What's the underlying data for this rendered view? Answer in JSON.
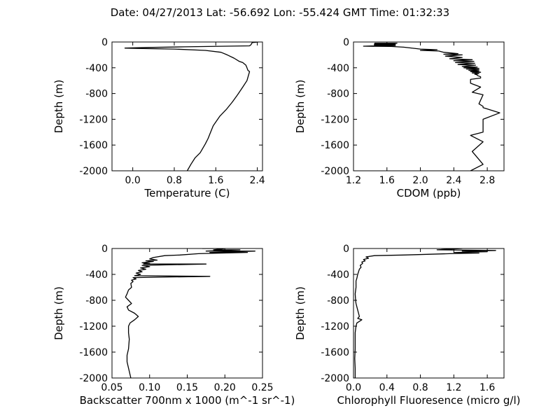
{
  "figure": {
    "title": "Date: 04/27/2013  Lat:  -56.692 Lon:  -55.424  GMT Time: 01:32:33",
    "line_color": "#000000",
    "background": "#ffffff"
  },
  "chart_data": [
    {
      "type": "line",
      "orientation": "vertical-profile",
      "xlabel": "Temperature (C)",
      "ylabel": "Depth (m)",
      "xlim": [
        -0.4,
        2.5
      ],
      "ylim": [
        -2000,
        0
      ],
      "xticks": [
        "0.0",
        "0.8",
        "1.6",
        "2.4"
      ],
      "xtick_values": [
        0.0,
        0.8,
        1.6,
        2.4
      ],
      "yticks": [
        "0",
        "-400",
        "-800",
        "-1200",
        "-1600",
        "-2000"
      ],
      "ytick_values": [
        0,
        -400,
        -800,
        -1200,
        -1600,
        -2000
      ],
      "grid": false,
      "series": [
        {
          "x": [
            2.42,
            2.3,
            2.28,
            2.25,
            1.0,
            0.3,
            -0.15,
            0.1,
            0.8,
            1.4,
            1.7,
            1.82,
            1.95,
            2.05,
            2.12,
            2.18,
            2.2,
            2.22,
            2.25,
            2.2,
            2.12,
            2.02,
            1.92,
            1.8,
            1.68,
            1.55,
            1.5,
            1.45,
            1.4,
            1.35,
            1.3,
            1.2,
            1.12,
            1.05
          ],
          "y": [
            0,
            -10,
            -40,
            -60,
            -75,
            -85,
            -95,
            -100,
            -110,
            -130,
            -160,
            -200,
            -250,
            -300,
            -320,
            -360,
            -400,
            -440,
            -460,
            -600,
            -700,
            -820,
            -930,
            -1050,
            -1150,
            -1300,
            -1400,
            -1500,
            -1580,
            -1650,
            -1720,
            -1800,
            -1900,
            -2000
          ]
        }
      ]
    },
    {
      "type": "line",
      "orientation": "vertical-profile",
      "xlabel": "CDOM (ppb)",
      "ylabel": "Depth (m)",
      "xlim": [
        1.2,
        3.0
      ],
      "ylim": [
        -2000,
        0
      ],
      "xticks": [
        "1.2",
        "1.6",
        "2.0",
        "2.4",
        "2.8"
      ],
      "xtick_values": [
        1.2,
        1.6,
        2.0,
        2.4,
        2.8
      ],
      "yticks": [
        "0",
        "-400",
        "-800",
        "-1200",
        "-1600",
        "-2000"
      ],
      "ytick_values": [
        0,
        -400,
        -800,
        -1200,
        -1600,
        -2000
      ],
      "grid": false,
      "series": [
        {
          "x": [
            1.45,
            1.72,
            1.45,
            1.7,
            1.45,
            1.7,
            1.45,
            1.7,
            1.45,
            1.7,
            1.45,
            1.32,
            1.65,
            1.8,
            2.0,
            2.2,
            2.0,
            2.22,
            2.28,
            2.45,
            2.28,
            2.5,
            2.3,
            2.5,
            2.35,
            2.62,
            2.4,
            2.64,
            2.42,
            2.65,
            2.45,
            2.66,
            2.5,
            2.68,
            2.52,
            2.7,
            2.55,
            2.7,
            2.58,
            2.7,
            2.6,
            2.72,
            2.62,
            2.7,
            2.65,
            2.68,
            2.68,
            2.72,
            2.72,
            2.6,
            2.6,
            2.72,
            2.62,
            2.75,
            2.7,
            2.75,
            2.75,
            2.95,
            2.75,
            2.75,
            2.6,
            2.75,
            2.62,
            2.75,
            2.6
          ],
          "y": [
            -20,
            -20,
            -30,
            -30,
            -40,
            -40,
            -50,
            -50,
            -55,
            -55,
            -60,
            -65,
            -70,
            -80,
            -110,
            -120,
            -130,
            -140,
            -160,
            -180,
            -190,
            -200,
            -220,
            -240,
            -260,
            -275,
            -290,
            -300,
            -320,
            -330,
            -350,
            -360,
            -380,
            -390,
            -400,
            -410,
            -420,
            -430,
            -440,
            -450,
            -460,
            -470,
            -480,
            -490,
            -500,
            -510,
            -520,
            -540,
            -560,
            -580,
            -640,
            -700,
            -780,
            -820,
            -960,
            -1000,
            -1020,
            -1100,
            -1200,
            -1400,
            -1450,
            -1550,
            -1700,
            -1900,
            -2000
          ]
        }
      ]
    },
    {
      "type": "line",
      "orientation": "vertical-profile",
      "xlabel": "Backscatter 700nm x 1000 (m^-1 sr^-1)",
      "ylabel": "Depth (m)",
      "xlim": [
        0.05,
        0.25
      ],
      "ylim": [
        -2000,
        0
      ],
      "xticks": [
        "0.05",
        "0.10",
        "0.15",
        "0.20",
        "0.25"
      ],
      "xtick_values": [
        0.05,
        0.1,
        0.15,
        0.2,
        0.25
      ],
      "yticks": [
        "0",
        "-400",
        "-800",
        "-1200",
        "-1600",
        "-2000"
      ],
      "ytick_values": [
        0,
        -400,
        -800,
        -1200,
        -1600,
        -2000
      ],
      "grid": false,
      "series": [
        {
          "x": [
            0.17,
            0.2,
            0.185,
            0.22,
            0.175,
            0.24,
            0.18,
            0.23,
            0.165,
            0.14,
            0.12,
            0.105,
            0.1,
            0.11,
            0.095,
            0.105,
            0.09,
            0.1,
            0.092,
            0.175,
            0.09,
            0.1,
            0.088,
            0.095,
            0.085,
            0.09,
            0.082,
            0.088,
            0.08,
            0.18,
            0.078,
            0.082,
            0.076,
            0.078,
            0.075,
            0.076,
            0.072,
            0.07,
            0.068,
            0.072,
            0.076,
            0.07,
            0.072,
            0.08,
            0.085,
            0.08,
            0.074,
            0.072,
            0.072,
            0.073,
            0.072,
            0.07,
            0.07,
            0.075
          ],
          "y": [
            0,
            0,
            -20,
            -20,
            -40,
            -40,
            -60,
            -60,
            -80,
            -100,
            -110,
            -140,
            -160,
            -180,
            -190,
            -200,
            -220,
            -230,
            -240,
            -240,
            -260,
            -280,
            -300,
            -320,
            -340,
            -360,
            -380,
            -400,
            -420,
            -430,
            -450,
            -470,
            -490,
            -510,
            -540,
            -600,
            -640,
            -700,
            -750,
            -800,
            -850,
            -900,
            -950,
            -1000,
            -1050,
            -1100,
            -1150,
            -1200,
            -1300,
            -1400,
            -1550,
            -1650,
            -1750,
            -2000
          ]
        }
      ]
    },
    {
      "type": "line",
      "orientation": "vertical-profile",
      "xlabel": "Chlorophyll Fluoresence (micro g/l)",
      "ylabel": "Depth (m)",
      "xlim": [
        0.0,
        1.8
      ],
      "ylim": [
        -2000,
        0
      ],
      "xticks": [
        "0.0",
        "0.4",
        "0.8",
        "1.2",
        "1.6"
      ],
      "xtick_values": [
        0.0,
        0.4,
        0.8,
        1.2,
        1.6
      ],
      "yticks": [
        "0",
        "-400",
        "-800",
        "-1200",
        "-1600",
        "-2000"
      ],
      "ytick_values": [
        0,
        -400,
        -800,
        -1200,
        -1600,
        -2000
      ],
      "grid": false,
      "series": [
        {
          "x": [
            1.05,
            1.3,
            1.0,
            1.7,
            1.3,
            1.6,
            1.2,
            1.5,
            1.15,
            0.6,
            0.25,
            0.15,
            0.18,
            0.12,
            0.14,
            0.1,
            0.11,
            0.08,
            0.09,
            0.07,
            0.06,
            0.05,
            0.045,
            0.04,
            0.03,
            0.03,
            0.02,
            0.025,
            0.03,
            0.04,
            0.05,
            0.06,
            0.07,
            0.05,
            0.1,
            0.04,
            0.03,
            0.02,
            0.02,
            0.02,
            0.015,
            0.02,
            0.02
          ],
          "y": [
            0,
            0,
            -20,
            -30,
            -40,
            -50,
            -60,
            -70,
            -80,
            -100,
            -110,
            -130,
            -150,
            -170,
            -190,
            -210,
            -230,
            -260,
            -290,
            -320,
            -360,
            -400,
            -430,
            -460,
            -500,
            -600,
            -700,
            -800,
            -850,
            -900,
            -950,
            -1000,
            -1050,
            -1080,
            -1100,
            -1150,
            -1200,
            -1300,
            -1400,
            -1550,
            -1700,
            -1850,
            -2000
          ]
        }
      ]
    }
  ]
}
